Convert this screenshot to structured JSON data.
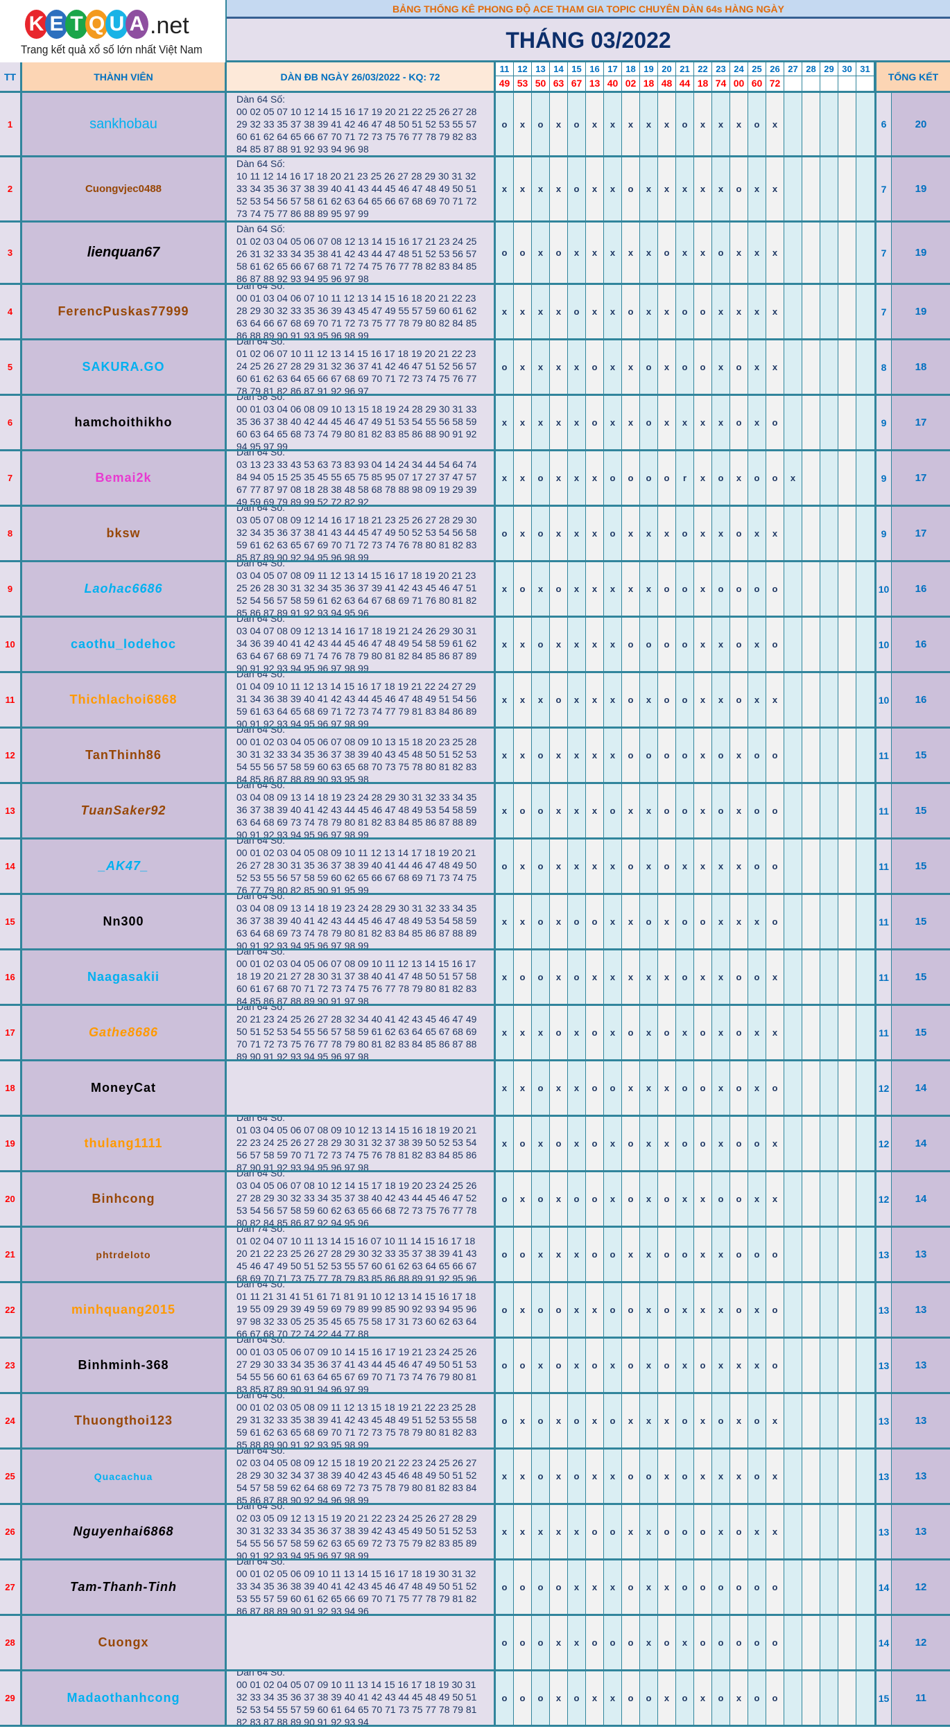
{
  "logo": {
    "letters": [
      "K",
      "E",
      "T",
      "Q",
      "U",
      "A"
    ],
    "letter_colors": [
      "#e8262d",
      "#2c6fbe",
      "#1aa64a",
      "#f39a1e",
      "#19b3e6",
      "#8e4fa0"
    ],
    "suffix": ".net",
    "tagline": "Trang kết quả xổ số lớn nhất Việt Nam"
  },
  "header": {
    "title": "BẢNG THỐNG KÊ PHONG ĐỘ ACE THAM GIA TOPIC CHUYÊN DÀN 64s HÀNG NGÀY",
    "month": "THÁNG 03/2022"
  },
  "columns": {
    "tt": "TT",
    "member": "THÀNH VIÊN",
    "dan": "DÀN ĐB NGÀY 26/03/2022 - KQ: 72",
    "total": "TỔNG KẾT"
  },
  "days": [
    "11",
    "12",
    "13",
    "14",
    "15",
    "16",
    "17",
    "18",
    "19",
    "20",
    "21",
    "22",
    "23",
    "24",
    "25",
    "26",
    "27",
    "28",
    "29",
    "30",
    "31"
  ],
  "results": [
    "49",
    "53",
    "50",
    "63",
    "67",
    "13",
    "40",
    "02",
    "18",
    "48",
    "44",
    "18",
    "74",
    "00",
    "60",
    "72"
  ],
  "colors": {
    "border": "#31859c",
    "result": "#ff0000",
    "total": "#0070c0",
    "title": "#e26b0a"
  },
  "rows": [
    {
      "tt": "1",
      "name": "sankhobau",
      "color": "#00b0f0",
      "style": "normal",
      "dan": [
        "Dàn 64 Số:",
        "00 02 05 07 10 12 14 15 16 17 19 20 21 22 25 26 27 28",
        "29 32 33 35 37 38 39 41 42 46 47 48 50 51 52 53 55 57",
        "60 61 62 64 65 66 67 70 71 72 73 75 76 77 78 79 82 83",
        "84 85 87 88 91 92 93 94 96 98"
      ],
      "marks": "oxoxoxxxxxoxxxox",
      "a": "6",
      "b": "20"
    },
    {
      "tt": "2",
      "name": "Cuongvjec0488",
      "color": "#974706",
      "style": "small",
      "dan": [
        "Dàn 64 Số:",
        "10 11 12 14 16 17 18 20 21 23 25 26 27 28 29 30 31 32",
        "33 34 35 36 37 38 39 40 41 43 44 45 46 47 48 49 50 51",
        "52 53 54 56 57 58 61 62 63 64 65 66 67 68 69 70 71 72",
        "73 74 75 77 86 88 89 95 97 99"
      ],
      "marks": "xxxxoxxoxxxxxoxx",
      "a": "7",
      "b": "19"
    },
    {
      "tt": "3",
      "name": "lienquan67",
      "color": "#000000",
      "style": "italic",
      "dan": [
        "Dàn 64 Số:",
        "01 02 03 04 05 06 07 08 12 13 14 15 16 17 21 23 24 25",
        "26 31 32 33 34 35 38 41 42 43 44 47 48 51 52 53 56 57",
        "58 61 62 65 66 67 68 71 72 74 75 76 77 78 82 83 84 85",
        "86 87 88 92 93 94 95 96 97 98"
      ],
      "marks": "ooxoxxxxxoxxoxxx",
      "a": "7",
      "b": "19"
    },
    {
      "tt": "4",
      "name": "FerencPuskas77999",
      "color": "#974706",
      "style": "bold",
      "dan": [
        "Dàn 64 Số:",
        "00 01 03 04 06 07 10 11 12 13 14 15 16 18 20 21 22 23",
        "28 29 30 32 33 35 36 39 43 45 47 49 55 57 59 60 61 62",
        "63 64 66 67 68 69 70 71 72 73 75 77 78 79 80 82 84 85",
        "86 88 89 90 91 93 95 96 98 99"
      ],
      "marks": "xxxxoxxoxxooxxxx",
      "a": "7",
      "b": "19"
    },
    {
      "tt": "5",
      "name": "SAKURA.GO",
      "color": "#00b0f0",
      "style": "bold",
      "dan": [
        "Dàn 64 Số:",
        "01 02 06 07 10 11 12 13 14 15 16 17 18 19 20 21 22 23",
        "24 25 26 27 28 29 31 32 36 37 41 42 46 47 51 52 56 57",
        "60 61 62 63 64 65 66 67 68 69 70 71 72 73 74 75 76 77",
        "78 79 81 82 86 87 91 92 96 97"
      ],
      "marks": "oxxxxoxxoxooxoxx",
      "a": "8",
      "b": "18"
    },
    {
      "tt": "6",
      "name": "hamchoithikho",
      "color": "#000000",
      "style": "bold",
      "dan": [
        "Dàn 58 Số:",
        "00 01 03 04 06 08 09 10 13 15 18 19 24 28 29 30 31 33",
        "35 36 37 38 40 42 44 45 46 47 49 51 53 54 55 56 58 59",
        "60 63 64 65 68 73 74 79 80 81 82 83 85 86 88 90 91 92",
        "94 95 97 99"
      ],
      "marks": "xxxxxoxxoxxxxoxo",
      "a": "9",
      "b": "17"
    },
    {
      "tt": "7",
      "name": "Bemai2k",
      "color": "#e83ad0",
      "style": "bold",
      "dan": [
        "Dàn 64 Số:",
        "03 13 23 33 43 53 63 73 83 93 04 14 24 34 44 54 64 74",
        "84 94 05 15 25 35 45 55 65 75 85 95 07 17 27 37 47 57",
        "67 77 87 97 08 18 28 38 48 58 68 78 88 98 09 19 29 39",
        "49 59 69 79 89 99 52 72 82 92"
      ],
      "marks": "xxoxxxoooorxoxoox",
      "a": "9",
      "b": "17"
    },
    {
      "tt": "8",
      "name": "bksw",
      "color": "#974706",
      "style": "bold",
      "dan": [
        "Dàn 64 Số:",
        "03 05 07 08 09 12 14 16 17 18 21 23 25 26 27 28 29 30",
        "32 34 35 36 37 38 41 43 44 45 47 49 50 52 53 54 56 58",
        "59 61 62 63 65 67 69 70 71 72 73 74 76 78 80 81 82 83",
        "85 87 89 90 92 94 95 96 98 99"
      ],
      "marks": "oxoxxxoxxxoxxoxx",
      "a": "9",
      "b": "17"
    },
    {
      "tt": "9",
      "name": "Laohac6686",
      "color": "#00b0f0",
      "style": "italic",
      "dan": [
        "Dàn 64 Số:",
        "03 04 05 07 08 09 11 12 13 14 15 16 17 18 19 20 21 23",
        "25 26 28 30 31 32 34 35 36 37 39 41 42 43 45 46 47 51",
        "52 54 56 57 58 59 61 62 63 64 67 68 69 71 76 80 81 82",
        "85 86 87 89 91 92 93 94 95 96"
      ],
      "marks": "xoxoxxxxxooxoooo",
      "a": "10",
      "b": "16"
    },
    {
      "tt": "10",
      "name": "caothu_lodehoc",
      "color": "#00b0f0",
      "style": "bold",
      "dan": [
        "Dàn 64 Số:",
        "03 04 07 08 09 12 13 14 16 17 18 19 21 24 26 29 30 31",
        "34 36 39 40 41 42 43 44 45 46 47 48 49 54 58 59 61 62",
        "63 64 67 68 69 71 74 76 78 79 80 81 82 84 85 86 87 89",
        "90 91 92 93 94 95 96 97 98 99"
      ],
      "marks": "xxoxxxxooooxxoxo",
      "a": "10",
      "b": "16"
    },
    {
      "tt": "11",
      "name": "Thichlachoi6868",
      "color": "#ff9900",
      "style": "bold",
      "dan": [
        "Dàn 64 Số:",
        "01 04 09 10 11 12 13 14 15 16 17 18 19 21 22 24 27 29",
        "31 34 36 38 39 40 41 42 43 44 45 46 47 48 49 51 54 56",
        "59 61 63 64 65 68 69 71 72 73 74 77 79 81 83 84 86 89",
        "90 91 92 93 94 95 96 97 98 99"
      ],
      "marks": "xxxoxxxoxooxxoxx",
      "a": "10",
      "b": "16"
    },
    {
      "tt": "12",
      "name": "TanThinh86",
      "color": "#974706",
      "style": "bold",
      "dan": [
        "Dàn 64 Số:",
        "00 01 02 03 04 05 06 07 08 09 10 13 15 18 20 23 25 28",
        "30 31 32 33 34 35 36 37 38 39 40 43 45 48 50 51 52 53",
        "54 55 56 57 58 59 60 63 65 68 70 73 75 78 80 81 82 83",
        "84 85 86 87 88 89 90 93 95 98"
      ],
      "marks": "xxoxxxxooooxoxoo",
      "a": "11",
      "b": "15"
    },
    {
      "tt": "13",
      "name": "TuanSaker92",
      "color": "#974706",
      "style": "italic",
      "dan": [
        "Dàn 64 Số:",
        "03 04 08 09 13 14 18 19 23 24 28 29 30 31 32 33 34 35",
        "36 37 38 39 40 41 42 43 44 45 46 47 48 49 53 54 58 59",
        "63 64 68 69 73 74 78 79 80 81 82 83 84 85 86 87 88 89",
        "90 91 92 93 94 95 96 97 98 99"
      ],
      "marks": "xooxxxoxxooxoxoo",
      "a": "11",
      "b": "15"
    },
    {
      "tt": "14",
      "name": "_AK47_",
      "color": "#00b0f0",
      "style": "italic",
      "dan": [
        "Dàn 64 Số:",
        "00 01 02 03 04 05 08 09 10 11 12 13 14 17 18 19 20 21",
        "26 27 28 30 31 35 36 37 38 39 40 41 44 46 47 48 49 50",
        "52 53 55 56 57 58 59 60 62 65 66 67 68 69 71 73 74 75",
        "76 77 79 80 82 85 90 91 95 99"
      ],
      "marks": "oxoxxxxoxoxxxxoo",
      "a": "11",
      "b": "15"
    },
    {
      "tt": "15",
      "name": "Nn300",
      "color": "#000000",
      "style": "bold",
      "dan": [
        "Dàn 64 Số:",
        "03 04 08 09 13 14 18 19 23 24 28 29 30 31 32 33 34 35",
        "36 37 38 39 40 41 42 43 44 45 46 47 48 49 53 54 58 59",
        "63 64 68 69 73 74 78 79 80 81 82 83 84 85 86 87 88 89",
        "90 91 92 93 94 95 96 97 98 99"
      ],
      "marks": "xxoxooxxoxooxxxo",
      "a": "11",
      "b": "15"
    },
    {
      "tt": "16",
      "name": "Naagasakii",
      "color": "#00b0f0",
      "style": "bold",
      "dan": [
        "Dàn 64 Số:",
        "00 01 02 03 04 05 06 07 08 09 10 11 12 13 14 15 16 17",
        "18 19 20 21 27 28 30 31 37 38 40 41 47 48 50 51 57 58",
        "60 61 67 68 70 71 72 73 74 75 76 77 78 79 80 81 82 83",
        "84 85 86 87 88 89 90 91 97 98"
      ],
      "marks": "xooxoxxxxxoxxoox",
      "a": "11",
      "b": "15"
    },
    {
      "tt": "17",
      "name": "Gathe8686",
      "color": "#ff9900",
      "style": "italic",
      "dan": [
        "Dàn 64 Số:",
        "20 21 23 24 25 26 27 28 32 34 40 41 42 43 45 46 47 49",
        "50 51 52 53 54 55 56 57 58 59 61 62 63 64 65 67 68 69",
        "70 71 72 73 75 76 77 78 79 80 81 82 83 84 85 86 87 88",
        "89 90 91 92 93 94 95 96 97 98"
      ],
      "marks": "xxxoxoxoxoxoxoxx",
      "a": "11",
      "b": "15"
    },
    {
      "tt": "18",
      "name": "MoneyCat",
      "color": "#000000",
      "style": "bold",
      "dan": [],
      "marks": "xxoxxooxxxooxoxo",
      "a": "12",
      "b": "14"
    },
    {
      "tt": "19",
      "name": "thulang1111",
      "color": "#ff9900",
      "style": "bold",
      "dan": [
        "Dàn 64 Số:",
        "01 03 04 05 06 07 08 09 10 12 13 14 15 16 18 19 20 21",
        "22 23 24 25 26 27 28 29 30 31 32 37 38 39 50 52 53 54",
        "56 57 58 59 70 71 72 73 74 75 76 78 81 82 83 84 85 86",
        "87 90 91 92 93 94 95 96 97 98"
      ],
      "marks": "xoxoxoxoxxooxoox",
      "a": "12",
      "b": "14"
    },
    {
      "tt": "20",
      "name": "Binhcong",
      "color": "#974706",
      "style": "bold",
      "dan": [
        "Dàn 64 Số:",
        "03 04 05 06 07 08 10 12 14 15 17 18 19 20 23 24 25 26",
        "27 28 29 30 32 33 34 35 37 38 40 42 43 44 45 46 47 52",
        "53 54 56 57 58 59 60 62 63 65 66 68 72 73 75 76 77 78",
        "80 82 84 85 86 87 92 94 95 96"
      ],
      "marks": "oxoxooxoxoxxooxx",
      "a": "12",
      "b": "14"
    },
    {
      "tt": "21",
      "name": "phtrdeloto",
      "color": "#974706",
      "style": "small",
      "dan": [
        "Dàn 74 Số:",
        "01 02 04 07 10 11 13 14 15 16 07 10 11 14 15 16 17 18",
        "20 21 22 23 25 26 27 28 29 30 32 33 35 37 38 39 41 43",
        "45 46 47 49 50 51 52 53 55 57 60 61 62 63 64 65 66 67",
        "68 69 70 71 73 75 77 78 79 83 85 86 88 89 91 92 95 96"
      ],
      "marks": "ooxxxooxxooxxooo",
      "a": "13",
      "b": "13"
    },
    {
      "tt": "22",
      "name": "minhquang2015",
      "color": "#ff9900",
      "style": "bold",
      "dan": [
        "Dàn 64 Số:",
        "01 11 21 31 41 51 61 71 81 91 10 12 13 14 15 16 17 18",
        "19 55 09 29 39 49 59 69 79 89 99 85 90 92 93 94 95 96",
        "97 98 32 33 05 25 35 45 65 75 58 17 31 73 60 62 63 64",
        "66 67 68 70 72 74 22 44 77 88"
      ],
      "marks": "oxooxxooxoxxxoxo",
      "a": "13",
      "b": "13"
    },
    {
      "tt": "23",
      "name": "Binhminh-368",
      "color": "#000000",
      "style": "bold",
      "dan": [
        "Dàn 64 Số:",
        "00 01 03 05 06 07 09 10 14 15 16 17 19 21 23 24 25 26",
        "27 29 30 33 34 35 36 37 41 43 44 45 46 47 49 50 51 53",
        "54 55 56 60 61 63 64 65 67 69 70 71 73 74 76 79 80 81",
        "83 85 87 89 90 91 94 96 97 99"
      ],
      "marks": "ooxoxoxoxoxoxxxo",
      "a": "13",
      "b": "13"
    },
    {
      "tt": "24",
      "name": "Thuongthoi123",
      "color": "#974706",
      "style": "bold",
      "dan": [
        "Dàn 64 Số:",
        "00 01 02 03 05 08 09 11 12 13 15 18 19 21 22 23 25 28",
        "29 31 32 33 35 38 39 41 42 43 45 48 49 51 52 53 55 58",
        "59 61 62 63 65 68 69 70 71 72 73 75 78 79 80 81 82 83",
        "85 88 89 90 91 92 93 95 98 99"
      ],
      "marks": "oxoxoxoxxxoxoxox",
      "a": "13",
      "b": "13"
    },
    {
      "tt": "25",
      "name": "Quacachua",
      "color": "#00b0f0",
      "style": "small",
      "dan": [
        "Dàn 64 Số:",
        "02 03 04 05 08 09 12 15 18 19 20 21 22 23 24 25 26 27",
        "28 29 30 32 34 37 38 39 40 42 43 45 46 48 49 50 51 52",
        "54 57 58 59 62 64 68 69 72 73 75 78 79 80 81 82 83 84",
        "85 86 87 88 90 92 94 96 98 99"
      ],
      "marks": "xxoxoxxooxoxxxox",
      "a": "13",
      "b": "13"
    },
    {
      "tt": "26",
      "name": "Nguyenhai6868",
      "color": "#000000",
      "style": "italic",
      "dan": [
        "Dàn 64 Số:",
        "02 03 05 09 12 13 15 19 20 21 22 23 24 25 26 27 28 29",
        "30 31 32 33 34 35 36 37 38 39 42 43 45 49 50 51 52 53",
        "54 55 56 57 58 59 62 63 65 69 72 73 75 79 82 83 85 89",
        "90 91 92 93 94 95 96 97 98 99"
      ],
      "marks": "xxxxxooxxoooxoxx",
      "a": "13",
      "b": "13"
    },
    {
      "tt": "27",
      "name": "Tam-Thanh-Tinh",
      "color": "#000000",
      "style": "italic",
      "dan": [
        "Dàn 64 Số:",
        "00 01 02 05 06 09 10 11 13 14 15 16 17 18 19 30 31 32",
        "33 34 35 36 38 39 40 41 42 43 45 46 47 48 49 50 51 52",
        "53 55 57 59 60 61 62 65 66 69 70 71 75 77 78 79 81 82",
        "86 87 88 89 90 91 92 93 94 96"
      ],
      "marks": "ooooxxxoxxoooooo",
      "a": "14",
      "b": "12"
    },
    {
      "tt": "28",
      "name": "Cuongx",
      "color": "#974706",
      "style": "bold",
      "dan": [],
      "marks": "oooxxoooxoxooooo",
      "a": "14",
      "b": "12"
    },
    {
      "tt": "29",
      "name": "Madaothanhcong",
      "color": "#00b0f0",
      "style": "bold",
      "dan": [
        "Dàn 64 Số:",
        "00 01 02 04 05 07 09 10 11 13 14 15 16 17 18 19 30 31",
        "32 33 34 35 36 37 38 39 40 41 42 43 44 45 48 49 50 51",
        "52 53 54 55 57 59 60 61 64 65 70 71 73 75 77 78 79 81",
        "82 83 87 88 89 90 91 92 93 94"
      ],
      "marks": "oooxoxxooxoxoxoo",
      "a": "15",
      "b": "11"
    }
  ]
}
